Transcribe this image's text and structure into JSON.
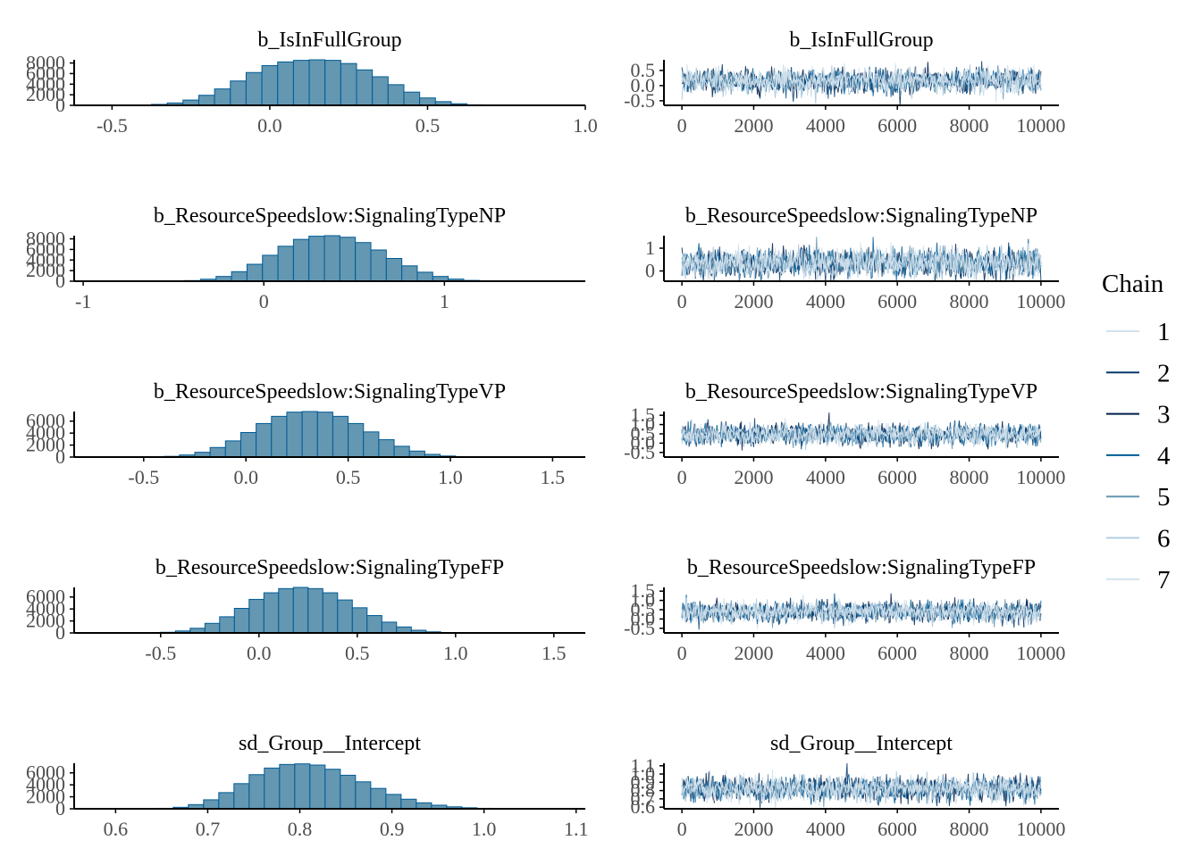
{
  "legend": {
    "title": "Chain",
    "items": [
      {
        "label": "1",
        "color": "#d1e1ec"
      },
      {
        "label": "2",
        "color": "#03396c"
      },
      {
        "label": "3",
        "color": "#011f4b"
      },
      {
        "label": "4",
        "color": "#005b96"
      },
      {
        "label": "5",
        "color": "#6497b1"
      },
      {
        "label": "6",
        "color": "#b3cde0"
      },
      {
        "label": "7",
        "color": "#d1e1ec"
      }
    ]
  },
  "colors": {
    "hist_fill": "#6497b1",
    "hist_edge": "#005b96",
    "axis": "#000000",
    "tick_text": "#4d4d4d"
  },
  "chart_data": [
    {
      "type": "bar",
      "subtype": "histogram",
      "title": "b_IsInFullGroup",
      "xlim": [
        -0.62,
        1.0
      ],
      "ylim": [
        0,
        8600
      ],
      "xticks": [
        -0.5,
        0.0,
        0.5,
        1.0
      ],
      "xtick_labels": [
        "-0.5",
        "0.0",
        "0.5",
        "1.0"
      ],
      "yticks": [
        0,
        2000,
        4000,
        6000,
        8000
      ],
      "ytick_labels": [
        "0",
        "2000",
        "4000",
        "6000",
        "8000"
      ],
      "bin_start": -0.575,
      "bin_width": 0.05,
      "values": [
        0,
        0,
        0,
        50,
        180,
        450,
        1000,
        1900,
        3100,
        4600,
        6200,
        7500,
        8200,
        8500,
        8600,
        8500,
        7900,
        6700,
        5400,
        3900,
        2500,
        1400,
        700,
        300,
        100,
        30,
        10,
        0,
        0,
        0,
        0,
        0
      ]
    },
    {
      "type": "line",
      "subtype": "trace",
      "title": "b_IsInFullGroup",
      "xlim": [
        -500,
        10500
      ],
      "ylim": [
        -0.65,
        0.85
      ],
      "xticks": [
        0,
        2000,
        4000,
        6000,
        8000,
        10000
      ],
      "xtick_labels": [
        "0",
        "2000",
        "4000",
        "6000",
        "8000",
        "10000"
      ],
      "yticks": [
        -0.5,
        0.0,
        0.5
      ],
      "ytick_labels": [
        "-0.5",
        "0.0",
        "0.5"
      ],
      "iterations": [
        0,
        10000
      ],
      "center": 0.15,
      "spread": 0.2
    },
    {
      "type": "bar",
      "subtype": "histogram",
      "title": "b_ResourceSpeedslow:SignalingTypeNP",
      "xlim": [
        -1.05,
        1.78
      ],
      "ylim": [
        0,
        8600
      ],
      "xticks": [
        -1,
        0,
        1
      ],
      "xtick_labels": [
        "-1",
        "0",
        "1"
      ],
      "yticks": [
        0,
        2000,
        4000,
        6000,
        8000
      ],
      "ytick_labels": [
        "0",
        "2000",
        "4000",
        "6000",
        "8000"
      ],
      "bin_start": -0.95,
      "bin_width": 0.0857,
      "values": [
        0,
        0,
        0,
        0,
        0,
        30,
        120,
        380,
        900,
        1800,
        3200,
        4900,
        6600,
        7900,
        8500,
        8600,
        8300,
        7300,
        5900,
        4300,
        2900,
        1700,
        900,
        400,
        150,
        50,
        10,
        0,
        0,
        0,
        0,
        0,
        0
      ]
    },
    {
      "type": "line",
      "subtype": "trace",
      "title": "b_ResourceSpeedslow:SignalingTypeNP",
      "xlim": [
        -500,
        10500
      ],
      "ylim": [
        -0.45,
        1.55
      ],
      "xticks": [
        0,
        2000,
        4000,
        6000,
        8000,
        10000
      ],
      "xtick_labels": [
        "0",
        "2000",
        "4000",
        "6000",
        "8000",
        "10000"
      ],
      "yticks": [
        0,
        1
      ],
      "ytick_labels": [
        "0",
        "1"
      ],
      "iterations": [
        0,
        10000
      ],
      "center": 0.35,
      "spread": 0.32
    },
    {
      "type": "bar",
      "subtype": "histogram",
      "title": "b_ResourceSpeedslow:SignalingTypeVP",
      "xlim": [
        -0.84,
        1.66
      ],
      "ylim": [
        0,
        7600
      ],
      "xticks": [
        -0.5,
        0.0,
        0.5,
        1.0,
        1.5
      ],
      "xtick_labels": [
        "-0.5",
        "0.0",
        "0.5",
        "1.0",
        "1.5"
      ],
      "yticks": [
        0,
        2000,
        4000,
        6000
      ],
      "ytick_labels": [
        "0",
        "2000",
        "4000",
        "6000"
      ],
      "bin_start": -0.775,
      "bin_width": 0.075,
      "values": [
        0,
        0,
        0,
        0,
        30,
        120,
        350,
        800,
        1600,
        2700,
        4100,
        5600,
        6800,
        7500,
        7600,
        7500,
        6800,
        5600,
        4200,
        2900,
        1800,
        1000,
        450,
        180,
        60,
        15,
        0,
        0,
        0,
        0,
        0,
        0,
        0
      ]
    },
    {
      "type": "line",
      "subtype": "trace",
      "title": "b_ResourceSpeedslow:SignalingTypeVP",
      "xlim": [
        -500,
        10500
      ],
      "ylim": [
        -0.75,
        1.7
      ],
      "xticks": [
        0,
        2000,
        4000,
        6000,
        8000,
        10000
      ],
      "xtick_labels": [
        "0",
        "2000",
        "4000",
        "6000",
        "8000",
        "10000"
      ],
      "yticks": [
        -0.5,
        0.0,
        0.5,
        1.0,
        1.5
      ],
      "ytick_labels": [
        "-0.5",
        "0.0",
        "0.5",
        "1.0",
        "1.5"
      ],
      "iterations": [
        0,
        10000
      ],
      "center": 0.45,
      "spread": 0.28
    },
    {
      "type": "bar",
      "subtype": "histogram",
      "title": "b_ResourceSpeedslow:SignalingTypeFP",
      "xlim": [
        -0.94,
        1.66
      ],
      "ylim": [
        0,
        7600
      ],
      "xticks": [
        -0.5,
        0.0,
        0.5,
        1.0,
        1.5
      ],
      "xtick_labels": [
        "-0.5",
        "0.0",
        "0.5",
        "1.0",
        "1.5"
      ],
      "yticks": [
        0,
        2000,
        4000,
        6000
      ],
      "ytick_labels": [
        "0",
        "2000",
        "4000",
        "6000"
      ],
      "bin_start": -0.875,
      "bin_width": 0.075,
      "values": [
        0,
        0,
        0,
        0,
        30,
        110,
        330,
        780,
        1600,
        2700,
        4100,
        5600,
        6700,
        7400,
        7600,
        7400,
        6700,
        5500,
        4200,
        2900,
        1800,
        1000,
        450,
        180,
        60,
        15,
        0,
        0,
        0,
        0,
        0,
        0,
        0,
        0
      ]
    },
    {
      "type": "line",
      "subtype": "trace",
      "title": "b_ResourceSpeedslow:SignalingTypeFP",
      "xlim": [
        -500,
        10500
      ],
      "ylim": [
        -0.75,
        1.7
      ],
      "xticks": [
        0,
        2000,
        4000,
        6000,
        8000,
        10000
      ],
      "xtick_labels": [
        "0",
        "2000",
        "4000",
        "6000",
        "8000",
        "10000"
      ],
      "yticks": [
        -0.5,
        0.0,
        0.5,
        1.0,
        1.5
      ],
      "ytick_labels": [
        "-0.5",
        "0.0",
        "0.5",
        "1.0",
        "1.5"
      ],
      "iterations": [
        0,
        10000
      ],
      "center": 0.38,
      "spread": 0.28
    },
    {
      "type": "bar",
      "subtype": "histogram",
      "title": "sd_Group__Intercept",
      "xlim": [
        0.555,
        1.11
      ],
      "ylim": [
        0,
        7600
      ],
      "xticks": [
        0.6,
        0.7,
        0.8,
        0.9,
        1.0,
        1.1
      ],
      "xtick_labels": [
        "0.6",
        "0.7",
        "0.8",
        "0.9",
        "1.0",
        "1.1"
      ],
      "yticks": [
        0,
        2000,
        4000,
        6000
      ],
      "ytick_labels": [
        "0",
        "2000",
        "4000",
        "6000"
      ],
      "bin_start": 0.58,
      "bin_width": 0.0165,
      "values": [
        0,
        0,
        0,
        20,
        80,
        250,
        700,
        1500,
        2700,
        4200,
        5700,
        6800,
        7400,
        7500,
        7300,
        6600,
        5600,
        4500,
        3400,
        2400,
        1600,
        1000,
        600,
        330,
        170,
        80,
        30,
        10,
        0,
        0,
        0,
        0,
        0
      ]
    },
    {
      "type": "line",
      "subtype": "trace",
      "title": "sd_Group__Intercept",
      "xlim": [
        -500,
        10500
      ],
      "ylim": [
        0.58,
        1.13
      ],
      "xticks": [
        0,
        2000,
        4000,
        6000,
        8000,
        10000
      ],
      "xtick_labels": [
        "0",
        "2000",
        "4000",
        "6000",
        "8000",
        "10000"
      ],
      "yticks": [
        0.6,
        0.7,
        0.8,
        0.9,
        1.0,
        1.1
      ],
      "ytick_labels": [
        "0.6",
        "0.7",
        "0.8",
        "0.9",
        "1.0",
        "1.1"
      ],
      "iterations": [
        0,
        10000
      ],
      "center": 0.82,
      "spread": 0.075
    }
  ]
}
